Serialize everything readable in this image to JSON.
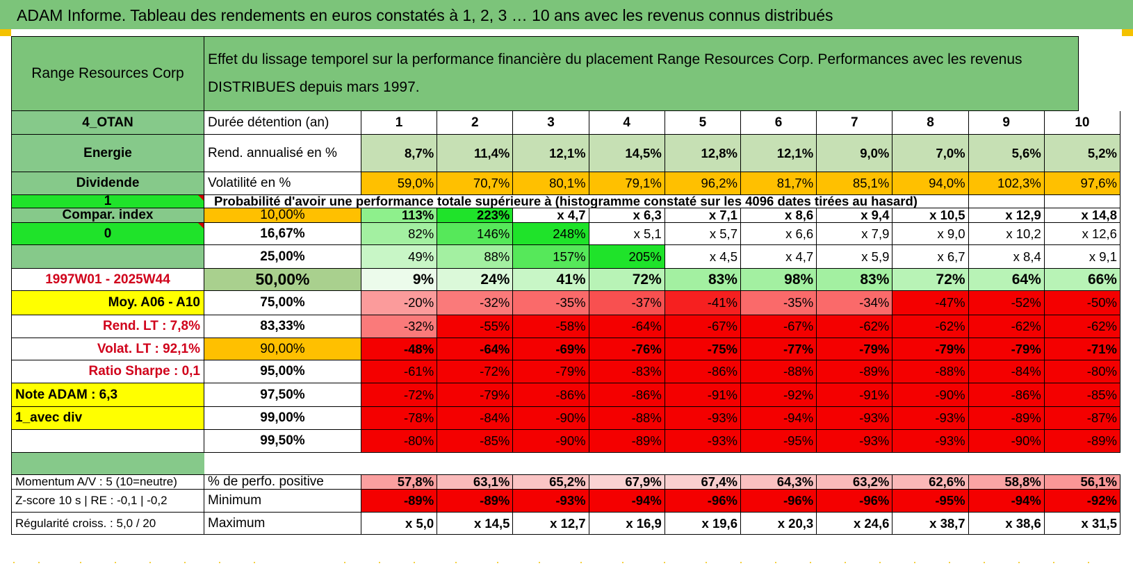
{
  "title": "ADAM Informe. Tableau des rendements en euros constatés à 1, 2, 3 … 10 ans avec les revenus connus distribués",
  "fund_name": "Range Resources Corp",
  "header_text": "Effet du lissage temporel sur la performance financière du placement Range Resources Corp. Performances avec les revenus DISTRIBUES depuis mars 1997.",
  "left_labels": {
    "code": "4_OTAN",
    "sector": "Energie",
    "dividend_type": "Dividende",
    "compare_flag": "1",
    "compare_label": "Compar. index",
    "index_value": "0",
    "blank": "",
    "period": "1997W01 - 2025W44",
    "avg": "Moy. A06 - A10",
    "rend_lt": "Rend. LT :    7,8%",
    "volat_lt": "Volat. LT :    92,1%",
    "sharpe": "Ratio Sharpe :     0,1",
    "note": "Note ADAM : 6,3",
    "variant": "1_avec div"
  },
  "row_labels": {
    "duration": "Durée détention (an)",
    "rend": "Rend. annualisé en %",
    "vol": "Volatilité en %",
    "prob": "Probabilité d'avoir une performance totale supérieure à (histogramme constaté sur les 4096 dates tirées au hasard)"
  },
  "years": [
    "1",
    "2",
    "3",
    "4",
    "5",
    "6",
    "7",
    "8",
    "9",
    "10"
  ],
  "rend_annualise": [
    "8,7%",
    "11,4%",
    "12,1%",
    "14,5%",
    "12,8%",
    "12,1%",
    "9,0%",
    "7,0%",
    "5,6%",
    "5,2%"
  ],
  "volatilite": [
    "59,0%",
    "70,7%",
    "80,1%",
    "79,1%",
    "96,2%",
    "81,7%",
    "85,1%",
    "94,0%",
    "102,3%",
    "97,6%"
  ],
  "percentile_rows": [
    {
      "pct": "10,00%",
      "values": [
        "113%",
        "223%",
        "x 4,7",
        "x 6,3",
        "x 7,1",
        "x 8,6",
        "x 9,4",
        "x 10,5",
        "x 12,9",
        "x 14,8"
      ]
    },
    {
      "pct": "16,67%",
      "values": [
        "82%",
        "146%",
        "248%",
        "x 5,1",
        "x 5,7",
        "x 6,6",
        "x 7,9",
        "x 9,0",
        "x 10,2",
        "x 12,6"
      ]
    },
    {
      "pct": "25,00%",
      "values": [
        "49%",
        "88%",
        "157%",
        "205%",
        "x 4,5",
        "x 4,7",
        "x 5,9",
        "x 6,7",
        "x 8,4",
        "x 9,1"
      ]
    },
    {
      "pct": "50,00%",
      "values": [
        "9%",
        "24%",
        "41%",
        "72%",
        "83%",
        "98%",
        "83%",
        "72%",
        "64%",
        "66%"
      ]
    },
    {
      "pct": "75,00%",
      "values": [
        "-20%",
        "-32%",
        "-35%",
        "-37%",
        "-41%",
        "-35%",
        "-34%",
        "-47%",
        "-52%",
        "-50%"
      ]
    },
    {
      "pct": "83,33%",
      "values": [
        "-32%",
        "-55%",
        "-58%",
        "-64%",
        "-67%",
        "-67%",
        "-62%",
        "-62%",
        "-62%",
        "-62%"
      ]
    },
    {
      "pct": "90,00%",
      "values": [
        "-48%",
        "-64%",
        "-69%",
        "-76%",
        "-75%",
        "-77%",
        "-79%",
        "-79%",
        "-79%",
        "-71%"
      ]
    },
    {
      "pct": "95,00%",
      "values": [
        "-61%",
        "-72%",
        "-79%",
        "-83%",
        "-86%",
        "-88%",
        "-89%",
        "-88%",
        "-84%",
        "-80%"
      ]
    },
    {
      "pct": "97,50%",
      "values": [
        "-72%",
        "-79%",
        "-86%",
        "-86%",
        "-91%",
        "-92%",
        "-91%",
        "-90%",
        "-86%",
        "-85%"
      ]
    },
    {
      "pct": "99,00%",
      "values": [
        "-78%",
        "-84%",
        "-90%",
        "-88%",
        "-93%",
        "-94%",
        "-93%",
        "-93%",
        "-89%",
        "-87%"
      ]
    },
    {
      "pct": "99,50%",
      "values": [
        "-80%",
        "-85%",
        "-90%",
        "-89%",
        "-93%",
        "-95%",
        "-93%",
        "-93%",
        "-90%",
        "-89%"
      ]
    }
  ],
  "bottom_rows": [
    {
      "left": "Momentum A/V : 5 (10=neutre)",
      "label": "% de perfo. positive",
      "values": [
        "57,8%",
        "63,1%",
        "65,2%",
        "67,9%",
        "67,4%",
        "64,3%",
        "63,2%",
        "62,6%",
        "58,8%",
        "56,1%"
      ]
    },
    {
      "left": "Z-score 10 s | RE : -0,1 | -0,2",
      "label": "Minimum",
      "values": [
        "-89%",
        "-89%",
        "-93%",
        "-94%",
        "-96%",
        "-96%",
        "-96%",
        "-95%",
        "-94%",
        "-92%"
      ]
    },
    {
      "left": "Régularité croiss. : 5,0 / 20",
      "label": "Maximum",
      "values": [
        "x 5,0",
        "x 14,5",
        "x 12,7",
        "x 16,9",
        "x 19,6",
        "x 20,3",
        "x 24,6",
        "x 38,7",
        "x 38,6",
        "x 31,5"
      ]
    }
  ],
  "colors": {
    "header_green": "#7cc47a",
    "label_green": "#86c98a",
    "bright_green": "#1fe32a",
    "orange": "#ffc000",
    "yellow": "#ffff00",
    "red_text": "#d0021b",
    "deep_red": "#f40000"
  }
}
